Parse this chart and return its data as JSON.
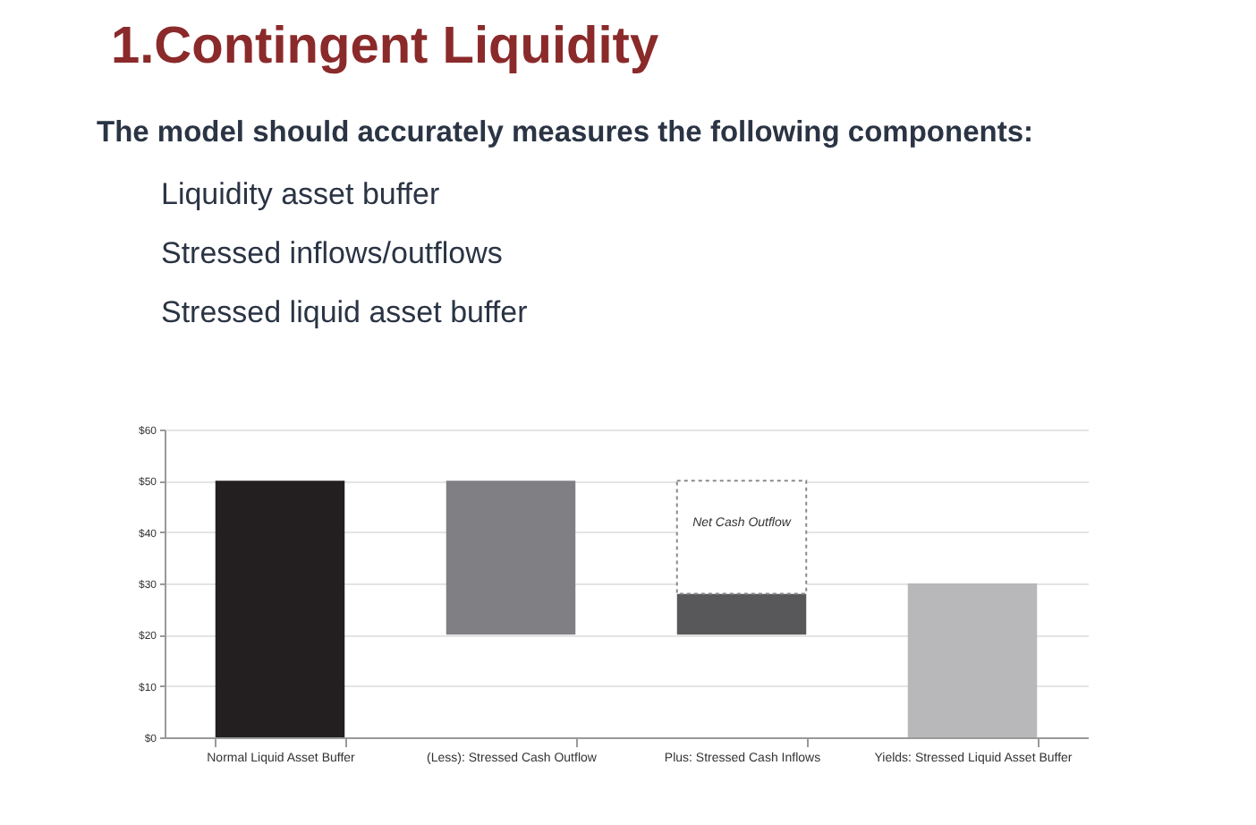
{
  "chart_data": {
    "type": "bar",
    "title": "1.Contingent Liquidity",
    "subtitle": "The model should accurately measures the following components:",
    "annotations": [
      "Liquidity asset buffer",
      "Stressed inflows/outflows",
      "Stressed liquid asset buffer"
    ],
    "categories": [
      "Normal Liquid Asset Buffer",
      "(Less): Stressed Cash Outflow",
      "Plus: Stressed Cash Inflows",
      "Yields: Stressed Liquid Asset Buffer"
    ],
    "series": [
      {
        "colors": [
          "#231f20",
          "#808084",
          "#58585a",
          "#b8b8bb"
        ],
        "values": [
          50,
          30,
          8,
          30
        ],
        "base": [
          0,
          20,
          20,
          0
        ]
      },
      {
        "name": "Net Cash Outflow",
        "color": "#ffffff",
        "line_style": "dashed",
        "values": [
          null,
          null,
          22,
          null
        ],
        "base": [
          null,
          null,
          28,
          null
        ]
      }
    ],
    "ylim": [
      0,
      60
    ],
    "yticks": [
      {
        "value": 0,
        "label": "$0"
      },
      {
        "value": 10,
        "label": "$10"
      },
      {
        "value": 20,
        "label": "$20"
      },
      {
        "value": 30,
        "label": "$30"
      },
      {
        "value": 40,
        "label": "$40"
      },
      {
        "value": 50,
        "label": "$50"
      },
      {
        "value": 60,
        "label": "$60"
      }
    ],
    "grid": "y"
  }
}
